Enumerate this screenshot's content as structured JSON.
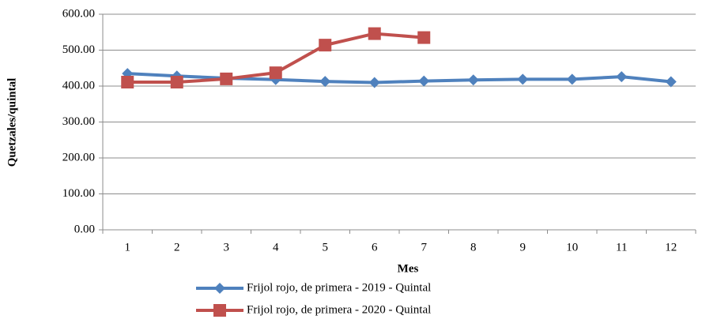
{
  "chart_data": {
    "type": "line",
    "x_label": "Mes",
    "y_label": "Quetzales/quintal",
    "categories": [
      "1",
      "2",
      "3",
      "4",
      "5",
      "6",
      "7",
      "8",
      "9",
      "10",
      "11",
      "12"
    ],
    "series": [
      {
        "name": "Frijol rojo, de primera - 2019 - Quintal",
        "color": "#4f81bd",
        "marker": "diamond",
        "values": [
          435,
          428,
          422,
          418,
          413,
          410,
          414,
          417,
          419,
          419,
          426,
          412
        ]
      },
      {
        "name": "Frijol rojo, de primera - 2020 - Quintal",
        "color": "#c0504d",
        "marker": "square",
        "values": [
          411,
          411,
          420,
          437,
          514,
          546,
          535,
          null,
          null,
          null,
          null,
          null
        ]
      }
    ],
    "ylim": [
      0,
      600
    ],
    "yticks": [
      {
        "value": 0,
        "label": "0.00"
      },
      {
        "value": 100,
        "label": "100.00"
      },
      {
        "value": 200,
        "label": "200.00"
      },
      {
        "value": 300,
        "label": "300.00"
      },
      {
        "value": 400,
        "label": "400.00"
      },
      {
        "value": 500,
        "label": "500.00"
      },
      {
        "value": 600,
        "label": "600.00"
      }
    ],
    "grid": true,
    "legend": "bottom"
  }
}
